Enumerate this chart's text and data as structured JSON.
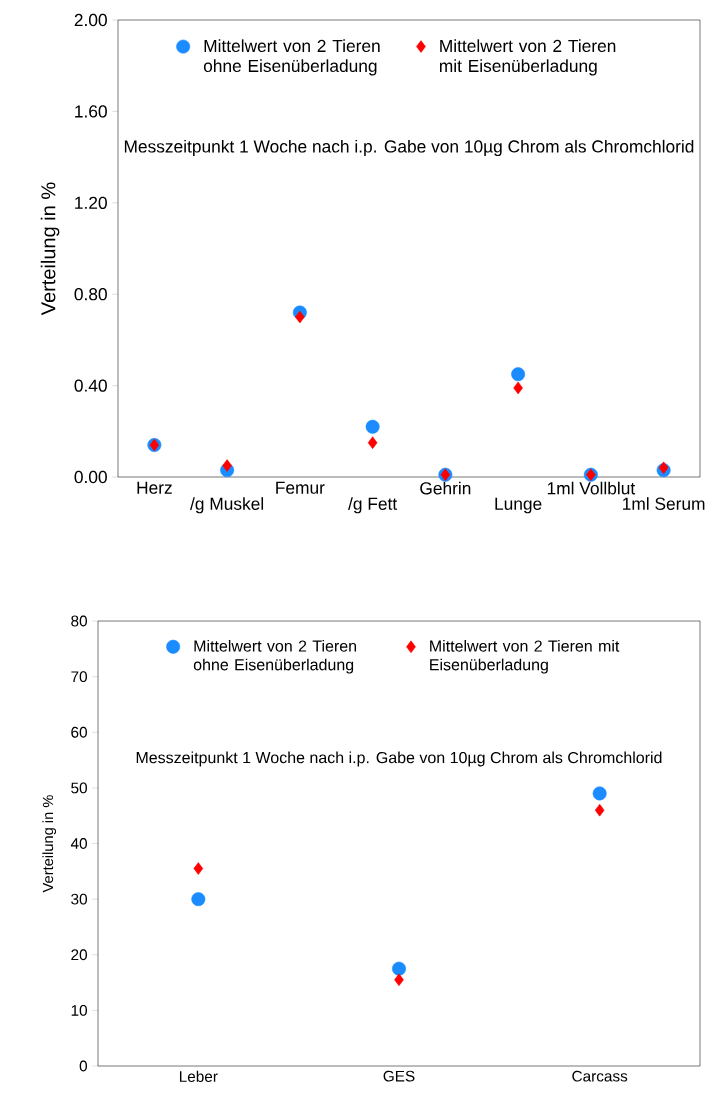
{
  "chart_data": [
    {
      "type": "scatter",
      "ylabel": "Verteilung in %",
      "categories": [
        "Herz",
        "/g Muskel",
        "Femur",
        "/g Fett",
        "Gehrin",
        "Lunge",
        "1ml Vollblut",
        "1ml Serum"
      ],
      "series": [
        {
          "name": "Mittelwert von 2 Tieren ohne Eisenüberladung",
          "color": "#1a8cff",
          "marker": "circle",
          "values": [
            0.14,
            0.03,
            0.72,
            0.22,
            0.01,
            0.45,
            0.01,
            0.03
          ]
        },
        {
          "name": "Mittelwert von 2 Tieren mit Eisenüberladung",
          "color": "#ff0000",
          "marker": "diamond",
          "values": [
            0.14,
            0.05,
            0.7,
            0.15,
            0.01,
            0.39,
            0.01,
            0.04
          ]
        }
      ],
      "ylim": [
        0,
        2
      ],
      "yticks": [
        {
          "value": 0,
          "label": "0.00"
        },
        {
          "value": 0.4,
          "label": "0.40"
        },
        {
          "value": 0.8,
          "label": "0.80"
        },
        {
          "value": 1.2,
          "label": "1.20"
        },
        {
          "value": 1.6,
          "label": "1.60"
        },
        {
          "value": 2,
          "label": "2.00"
        }
      ],
      "annotations": [
        "Messzeitpunkt 1 Woche nach i.p. Gabe von 10µg Chrom als Chromchlorid"
      ],
      "legend": "top",
      "grid": false
    },
    {
      "type": "scatter",
      "ylabel": "Verteilung in %",
      "categories": [
        "Leber",
        "GES",
        "Carcass"
      ],
      "series": [
        {
          "name": "Mittelwert von 2 Tieren ohne Eisenüberladung",
          "color": "#1a8cff",
          "marker": "circle",
          "values": [
            30,
            17.5,
            49
          ]
        },
        {
          "name": "Mittelwert von 2 Tieren mit Eisenüberladung",
          "color": "#ff0000",
          "marker": "diamond",
          "values": [
            35.5,
            15.5,
            46
          ]
        }
      ],
      "ylim": [
        0,
        80
      ],
      "yticks": [
        0,
        10,
        20,
        30,
        40,
        50,
        60,
        70,
        80
      ],
      "annotations": [
        "Messzeitpunkt 1 Woche nach i.p. Gabe von 10µg Chrom als Chromchlorid"
      ],
      "legend": "top",
      "grid": false
    }
  ]
}
